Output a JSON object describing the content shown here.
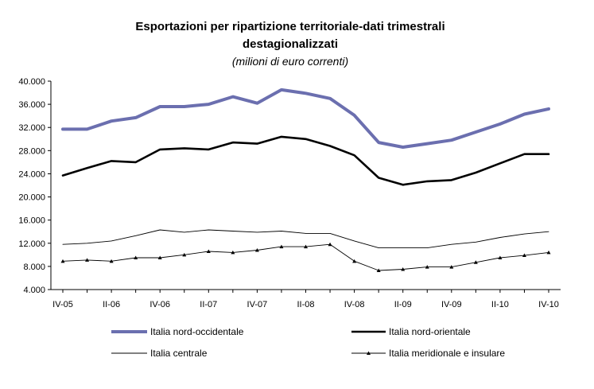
{
  "chart_data": {
    "type": "line",
    "title": "Esportazioni per ripartizione territoriale-dati trimestrali",
    "title_line2": "destagionalizzati",
    "subtitle": "(milioni di euro correnti)",
    "xlabel": "",
    "ylabel": "",
    "ylim": [
      4000,
      40000
    ],
    "y_ticks": [
      4000,
      8000,
      12000,
      16000,
      20000,
      24000,
      28000,
      32000,
      36000,
      40000
    ],
    "y_tick_labels": [
      "4.000",
      "8.000",
      "12.000",
      "16.000",
      "20.000",
      "24.000",
      "28.000",
      "32.000",
      "36.000",
      "40.000"
    ],
    "x": [
      "IV-05",
      "I-06",
      "II-06",
      "III-06",
      "IV-06",
      "I-07",
      "II-07",
      "III-07",
      "IV-07",
      "I-08",
      "II-08",
      "III-08",
      "IV-08",
      "I-09",
      "II-09",
      "III-09",
      "IV-09",
      "I-10",
      "II-10",
      "III-10",
      "IV-10"
    ],
    "x_tick_labels": [
      "IV-05",
      "II-06",
      "IV-06",
      "II-07",
      "IV-07",
      "II-08",
      "IV-08",
      "II-09",
      "IV-09",
      "II-10",
      "IV-10"
    ],
    "grid": false,
    "legend_placement": "bottom",
    "series": [
      {
        "name": "Italia nord-occidentale",
        "color": "#6b6faf",
        "style": "thick",
        "values": [
          31700,
          31700,
          33100,
          33700,
          35600,
          35600,
          36000,
          37300,
          36200,
          38500,
          37900,
          37000,
          34100,
          29400,
          28600,
          29200,
          29800,
          31200,
          32600,
          34300,
          35200
        ]
      },
      {
        "name": "Italia nord-orientale",
        "color": "#000000",
        "style": "bold",
        "values": [
          23700,
          25000,
          26200,
          26000,
          28200,
          28400,
          28200,
          29400,
          29200,
          30400,
          30000,
          28800,
          27200,
          23300,
          22100,
          22700,
          22900,
          24200,
          25800,
          27400,
          27400
        ]
      },
      {
        "name": "Italia centrale",
        "color": "#000000",
        "style": "thin",
        "values": [
          11800,
          12000,
          12400,
          13300,
          14300,
          13900,
          14300,
          14100,
          13900,
          14100,
          13700,
          13700,
          12400,
          11200,
          11200,
          11200,
          11800,
          12200,
          13000,
          13600,
          14000
        ]
      },
      {
        "name": "Italia meridionale e insulare",
        "color": "#000000",
        "style": "thin-marker",
        "values": [
          8900,
          9100,
          8900,
          9500,
          9500,
          10000,
          10600,
          10400,
          10800,
          11400,
          11400,
          11800,
          8900,
          7300,
          7500,
          7900,
          7900,
          8700,
          9500,
          9900,
          10400
        ]
      }
    ]
  }
}
